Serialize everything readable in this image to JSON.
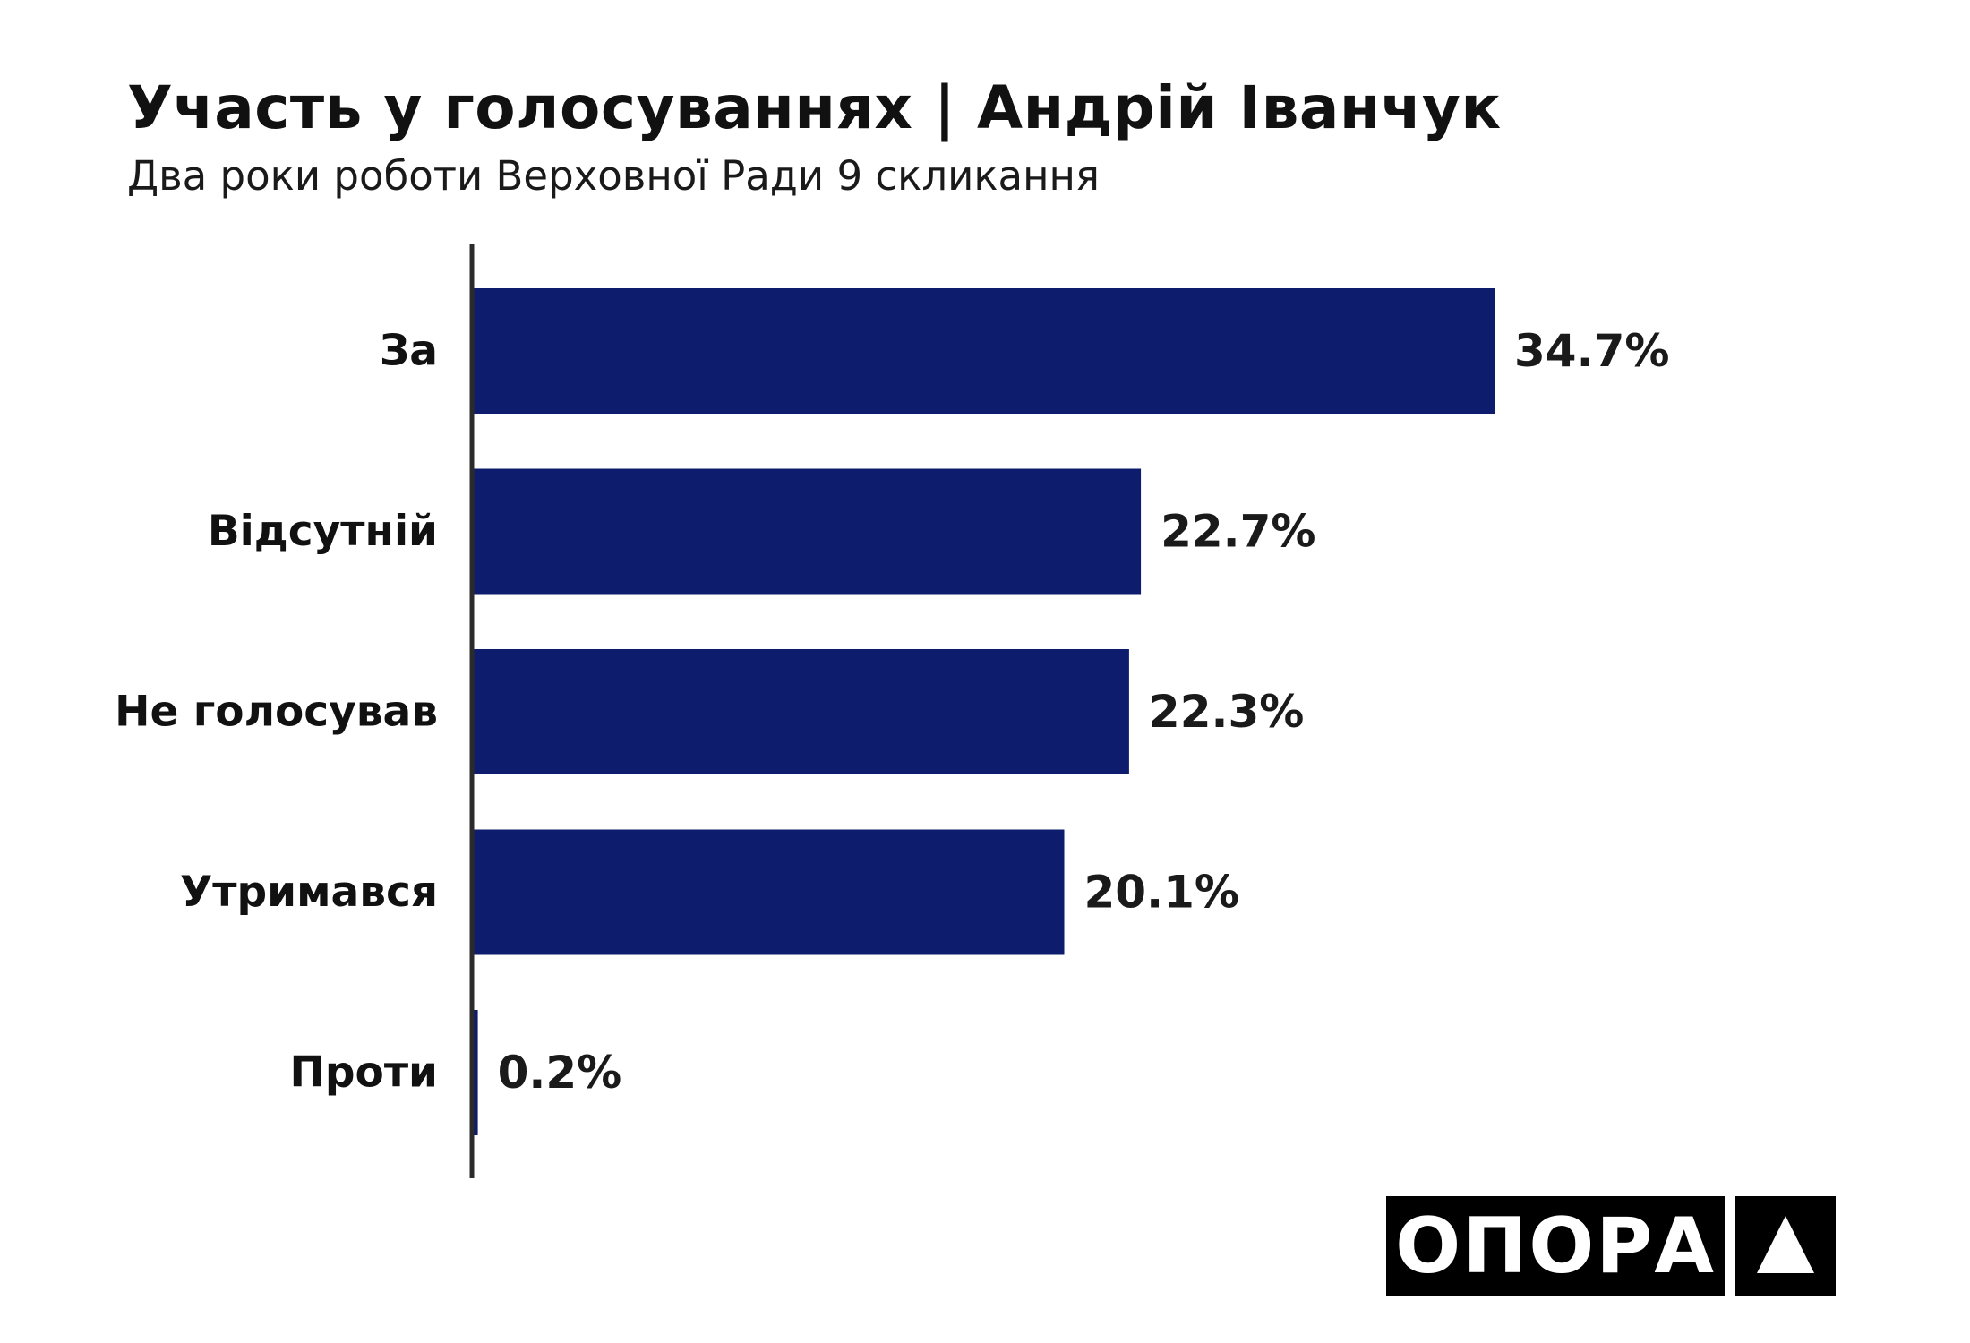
{
  "title": "Участь у голосуваннях | Андрій Іванчук",
  "subtitle": "Два роки роботи Верховної Ради 9 скликання",
  "brand": {
    "name": "ОПОРА",
    "mark_icon": "triangle-up-icon"
  },
  "colors": {
    "bar": "#0e1c6e",
    "axis": "#2b2b2b",
    "logo_bg": "#000000",
    "logo_fg": "#ffffff"
  },
  "chart_data": {
    "type": "bar",
    "orientation": "horizontal",
    "title": "Участь у голосуваннях | Андрій Іванчук",
    "subtitle": "Два роки роботи Верховної Ради 9 скликання",
    "categories": [
      "За",
      "Відсутній",
      "Не голосував",
      "Утримався",
      "Проти"
    ],
    "values": [
      34.7,
      22.7,
      22.3,
      20.1,
      0.2
    ],
    "value_labels": [
      "34.7%",
      "22.7%",
      "22.3%",
      "20.1%",
      "0.2%"
    ],
    "xlim": [
      0,
      34.7
    ],
    "grid": false,
    "legend": "none"
  }
}
